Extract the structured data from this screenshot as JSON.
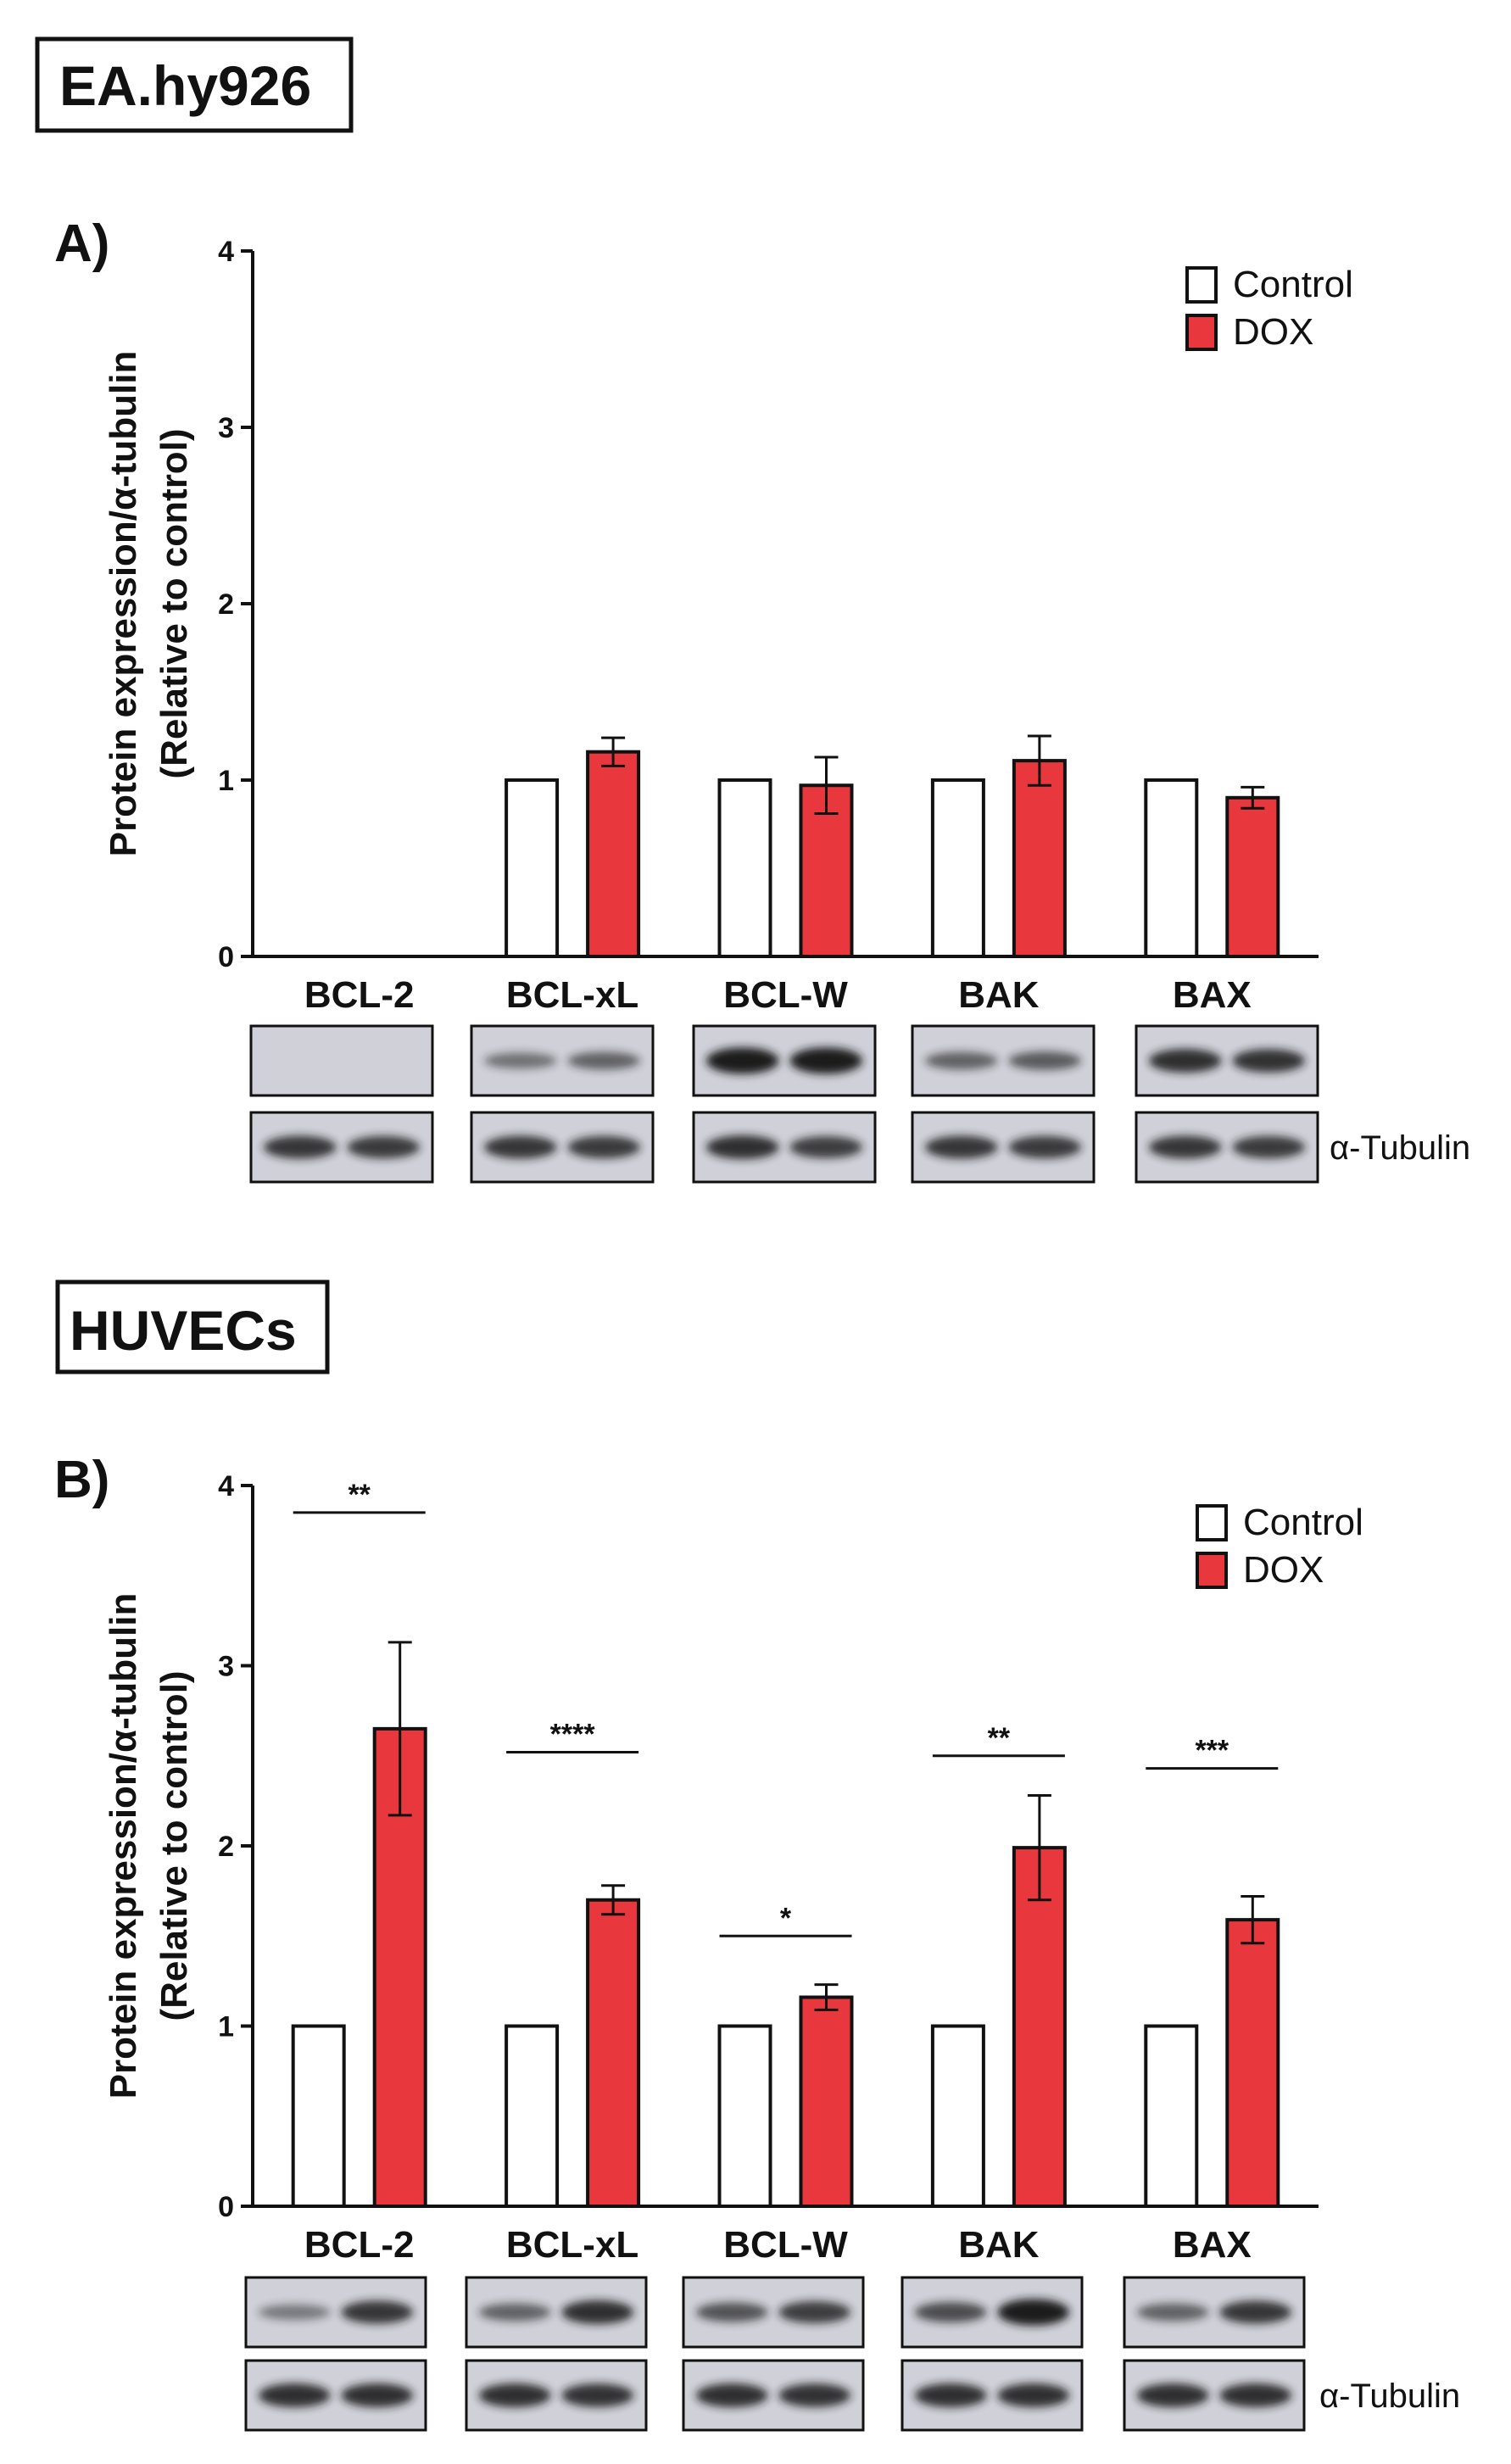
{
  "colors": {
    "control": "#ffffff",
    "dox": "#e8383d",
    "stroke": "#111111",
    "blot_bg": "#cfd0d8",
    "band": "#1a1a1e"
  },
  "legend": {
    "control": "Control",
    "dox": "DOX"
  },
  "loading_control_label": "α-Tubulin",
  "chart_data": [
    {
      "type": "bar",
      "section_title": "EA.hy926",
      "panel_label": "A)",
      "ylabel_line1": "Protein expression/α-tubulin",
      "ylabel_line2": "(Relative to control)",
      "ylim": [
        0,
        4
      ],
      "yticks": [
        "0",
        "1",
        "2",
        "3",
        "4"
      ],
      "categories": [
        "BCL-2",
        "BCL-xL",
        "BCL-W",
        "BAK",
        "BAX"
      ],
      "series": [
        {
          "name": "Control",
          "values": [
            null,
            1.0,
            1.0,
            1.0,
            1.0
          ],
          "errors": [
            null,
            0,
            0,
            0,
            0
          ]
        },
        {
          "name": "DOX",
          "values": [
            null,
            1.16,
            0.97,
            1.11,
            0.9
          ],
          "errors": [
            null,
            0.08,
            0.16,
            0.14,
            0.06
          ]
        }
      ],
      "significance": [
        "",
        "",
        "",
        "",
        ""
      ],
      "legend": "top-right",
      "blot_target": [
        [
          0.05,
          0.05
        ],
        [
          0.35,
          0.45
        ],
        [
          0.95,
          0.95
        ],
        [
          0.45,
          0.5
        ],
        [
          0.8,
          0.78
        ]
      ],
      "blot_tubulin": [
        [
          0.75,
          0.72
        ],
        [
          0.75,
          0.72
        ],
        [
          0.8,
          0.7
        ],
        [
          0.75,
          0.72
        ],
        [
          0.75,
          0.72
        ]
      ]
    },
    {
      "type": "bar",
      "section_title": "HUVECs",
      "panel_label": "B)",
      "ylabel_line1": "Protein expression/α-tubulin",
      "ylabel_line2": "(Relative to control)",
      "ylim": [
        0,
        4
      ],
      "yticks": [
        "0",
        "1",
        "2",
        "3",
        "4"
      ],
      "categories": [
        "BCL-2",
        "BCL-xL",
        "BCL-W",
        "BAK",
        "BAX"
      ],
      "series": [
        {
          "name": "Control",
          "values": [
            1.0,
            1.0,
            1.0,
            1.0,
            1.0
          ],
          "errors": [
            0,
            0,
            0,
            0,
            0
          ]
        },
        {
          "name": "DOX",
          "values": [
            2.65,
            1.7,
            1.16,
            1.99,
            1.59
          ],
          "errors": [
            0.48,
            0.08,
            0.07,
            0.29,
            0.13
          ]
        }
      ],
      "significance": [
        "**",
        "****",
        "*",
        "**",
        "***"
      ],
      "significance_level": [
        3.85,
        2.52,
        1.5,
        2.5,
        2.43
      ],
      "legend": "top-right",
      "blot_target": [
        [
          0.3,
          0.75
        ],
        [
          0.45,
          0.8
        ],
        [
          0.55,
          0.7
        ],
        [
          0.6,
          0.95
        ],
        [
          0.45,
          0.75
        ]
      ],
      "blot_tubulin": [
        [
          0.8,
          0.8
        ],
        [
          0.8,
          0.78
        ],
        [
          0.8,
          0.78
        ],
        [
          0.8,
          0.8
        ],
        [
          0.8,
          0.8
        ]
      ]
    }
  ]
}
